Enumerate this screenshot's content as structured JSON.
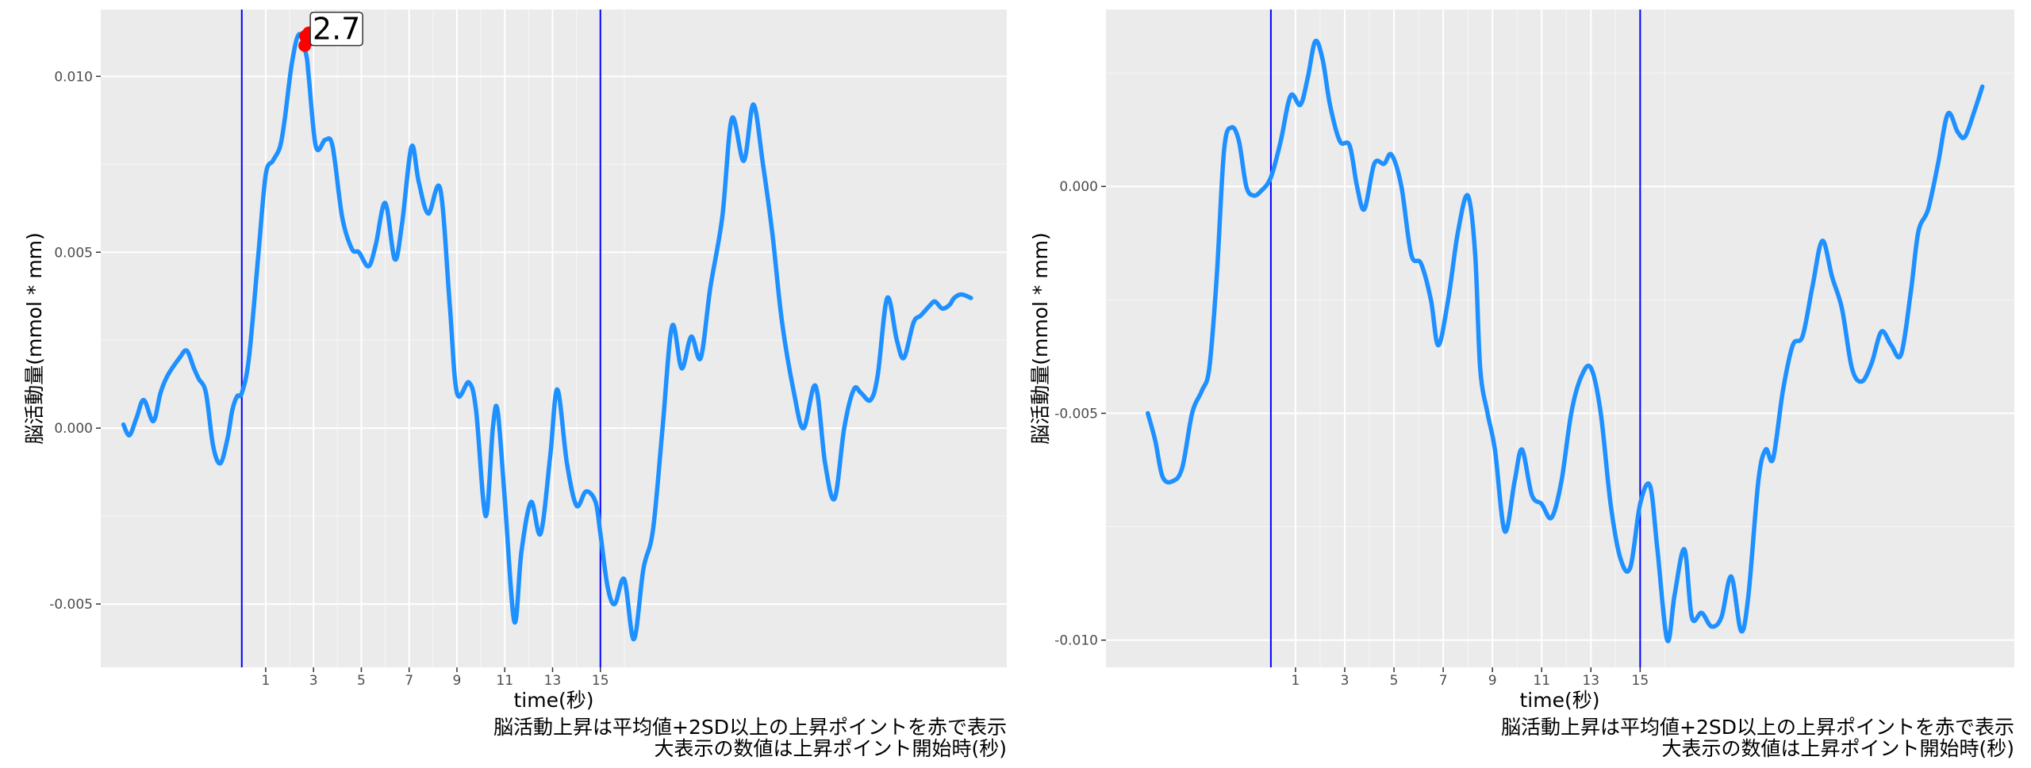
{
  "colors": {
    "panel_bg": "#ebebeb",
    "grid_major": "#ffffff",
    "series": "#1e90ff",
    "marker_line": "#0000ff",
    "peak": "#ff0000"
  },
  "captions": {
    "line1": "脳活動上昇は平均値+2SD以上の上昇ポイントを赤で表示",
    "line2": "大表示の数値は上昇ポイント開始時(秒)"
  },
  "chart_data": [
    {
      "type": "line",
      "xlabel": "time(秒)",
      "ylabel": "脳活動量(mmol * mm)",
      "xlim": [
        -5.9,
        32.0
      ],
      "ylim": [
        -0.0068,
        0.0119
      ],
      "x_ticks": [
        "1",
        "3",
        "5",
        "7",
        "9",
        "11",
        "13",
        "15"
      ],
      "y_ticks": [
        "0.010",
        "0.005",
        "0.000",
        "-0.005"
      ],
      "y_tick_values": [
        0.01,
        0.005,
        0.0,
        -0.005
      ],
      "vlines": [
        0,
        15
      ],
      "grid": true,
      "series": [
        {
          "x": [
            -4.95,
            -4.7,
            -4.4,
            -4.1,
            -3.7,
            -3.4,
            -3.1,
            -2.6,
            -2.3,
            -2.0,
            -1.8,
            -1.5,
            -1.2,
            -0.9,
            -0.6,
            -0.4,
            -0.2,
            0.0,
            0.3,
            0.7,
            1.0,
            1.3,
            1.6,
            1.8,
            2.1,
            2.4,
            2.7,
            2.8,
            3.1,
            3.5,
            3.8,
            4.2,
            4.6,
            4.9,
            5.3,
            5.6,
            6.0,
            6.4,
            6.7,
            7.1,
            7.4,
            7.8,
            8.3,
            8.7,
            9.0,
            9.5,
            9.8,
            10.2,
            10.5,
            10.7,
            11.0,
            11.4,
            11.7,
            12.1,
            12.5,
            12.9,
            13.2,
            13.6,
            14.0,
            14.4,
            14.8,
            15.0,
            15.3,
            15.6,
            16.0,
            16.4,
            16.8,
            17.2,
            17.6,
            18.0,
            18.4,
            18.8,
            19.2,
            19.6,
            20.1,
            20.5,
            21.0,
            21.4,
            21.8,
            22.2,
            22.6,
            23.1,
            23.5,
            24.0,
            24.4,
            24.8,
            25.2,
            25.6,
            25.9,
            26.3,
            26.6,
            27.0,
            27.4,
            27.7,
            28.1,
            28.4,
            28.8,
            29.0,
            29.3,
            29.6,
            29.8,
            30.1,
            30.5
          ],
          "y": [
            0.0001,
            -0.0002,
            0.0003,
            0.0008,
            0.0002,
            0.001,
            0.0015,
            0.002,
            0.0022,
            0.0017,
            0.0014,
            0.001,
            -0.0005,
            -0.001,
            -0.0003,
            0.0005,
            0.0009,
            0.001,
            0.002,
            0.005,
            0.0072,
            0.0076,
            0.008,
            0.0088,
            0.0104,
            0.0112,
            0.0106,
            0.01,
            0.008,
            0.0082,
            0.008,
            0.006,
            0.0051,
            0.005,
            0.0046,
            0.0052,
            0.0064,
            0.0048,
            0.0058,
            0.008,
            0.007,
            0.0061,
            0.0068,
            0.0035,
            0.001,
            0.0013,
            0.0005,
            -0.0025,
            0.0,
            0.0005,
            -0.002,
            -0.0055,
            -0.0035,
            -0.0021,
            -0.003,
            -0.0008,
            0.0011,
            -0.001,
            -0.0022,
            -0.0018,
            -0.0021,
            -0.003,
            -0.0045,
            -0.005,
            -0.0043,
            -0.006,
            -0.004,
            -0.0029,
            0.0,
            0.0029,
            0.0017,
            0.0026,
            0.002,
            0.004,
            0.006,
            0.0088,
            0.0076,
            0.0092,
            0.0075,
            0.0055,
            0.003,
            0.001,
            0.0,
            0.0012,
            -0.001,
            -0.002,
            0.0,
            0.0011,
            0.001,
            0.0008,
            0.0015,
            0.0037,
            0.0025,
            0.002,
            0.003,
            0.0032,
            0.0035,
            0.0036,
            0.0034,
            0.0035,
            0.0037,
            0.0038,
            0.0037
          ]
        }
      ],
      "peak": {
        "x": 2.7,
        "y": 0.0111,
        "label": "2.7"
      }
    },
    {
      "type": "line",
      "xlabel": "time(秒)",
      "ylabel": "脳活動量(mmol * mm)",
      "xlim": [
        -6.7,
        30.2
      ],
      "ylim": [
        -0.0106,
        0.0039
      ],
      "x_ticks": [
        "1",
        "3",
        "5",
        "7",
        "9",
        "11",
        "13",
        "15"
      ],
      "y_ticks": [
        "0.000",
        "-0.005",
        "-0.010"
      ],
      "y_tick_values": [
        0.0,
        -0.005,
        -0.01
      ],
      "vlines": [
        0,
        15
      ],
      "grid": true,
      "series": [
        {
          "x": [
            -5.0,
            -4.7,
            -4.4,
            -4.0,
            -3.6,
            -3.2,
            -2.8,
            -2.5,
            -2.2,
            -1.9,
            -1.6,
            -1.3,
            -1.0,
            -0.7,
            -0.4,
            0.0,
            0.4,
            0.8,
            1.2,
            1.5,
            1.8,
            2.1,
            2.4,
            2.8,
            3.2,
            3.5,
            3.8,
            4.2,
            4.6,
            4.9,
            5.3,
            5.7,
            6.1,
            6.5,
            6.8,
            7.2,
            7.6,
            8.0,
            8.3,
            8.5,
            8.8,
            9.1,
            9.5,
            9.9,
            10.2,
            10.6,
            11.0,
            11.4,
            11.8,
            12.2,
            12.6,
            13.0,
            13.4,
            13.8,
            14.2,
            14.6,
            15.0,
            15.4,
            15.7,
            16.1,
            16.4,
            16.8,
            17.1,
            17.5,
            17.9,
            18.3,
            18.7,
            19.1,
            19.4,
            19.8,
            20.1,
            20.4,
            20.8,
            21.2,
            21.6,
            22.0,
            22.4,
            22.8,
            23.2,
            23.6,
            24.0,
            24.4,
            24.8,
            25.2,
            25.6,
            26.0,
            26.3,
            26.7,
            27.1,
            27.5,
            27.9,
            28.2,
            28.6,
            28.9
          ],
          "y": [
            -0.005,
            -0.0056,
            -0.0064,
            -0.0065,
            -0.0062,
            -0.005,
            -0.0045,
            -0.004,
            -0.002,
            0.0008,
            0.0013,
            0.001,
            0.0,
            -0.0002,
            -0.0001,
            0.0002,
            0.001,
            0.002,
            0.0018,
            0.0024,
            0.0032,
            0.0028,
            0.0018,
            0.001,
            0.0009,
            0.0,
            -0.0005,
            0.0005,
            0.0005,
            0.0007,
            0.0,
            -0.0015,
            -0.0017,
            -0.0025,
            -0.0035,
            -0.0025,
            -0.001,
            -0.0002,
            -0.0015,
            -0.004,
            -0.005,
            -0.0058,
            -0.0076,
            -0.0065,
            -0.0058,
            -0.0068,
            -0.007,
            -0.0073,
            -0.0065,
            -0.005,
            -0.0042,
            -0.004,
            -0.005,
            -0.007,
            -0.0082,
            -0.0084,
            -0.007,
            -0.0066,
            -0.008,
            -0.01,
            -0.009,
            -0.008,
            -0.0095,
            -0.0094,
            -0.0097,
            -0.0095,
            -0.0086,
            -0.0098,
            -0.009,
            -0.0065,
            -0.0058,
            -0.006,
            -0.0045,
            -0.0035,
            -0.0033,
            -0.0022,
            -0.0012,
            -0.002,
            -0.0027,
            -0.004,
            -0.0043,
            -0.0039,
            -0.0032,
            -0.0035,
            -0.0037,
            -0.0023,
            -0.001,
            -0.0005,
            0.0005,
            0.0016,
            0.0012,
            0.0011,
            0.0017,
            0.0022
          ]
        }
      ]
    }
  ]
}
